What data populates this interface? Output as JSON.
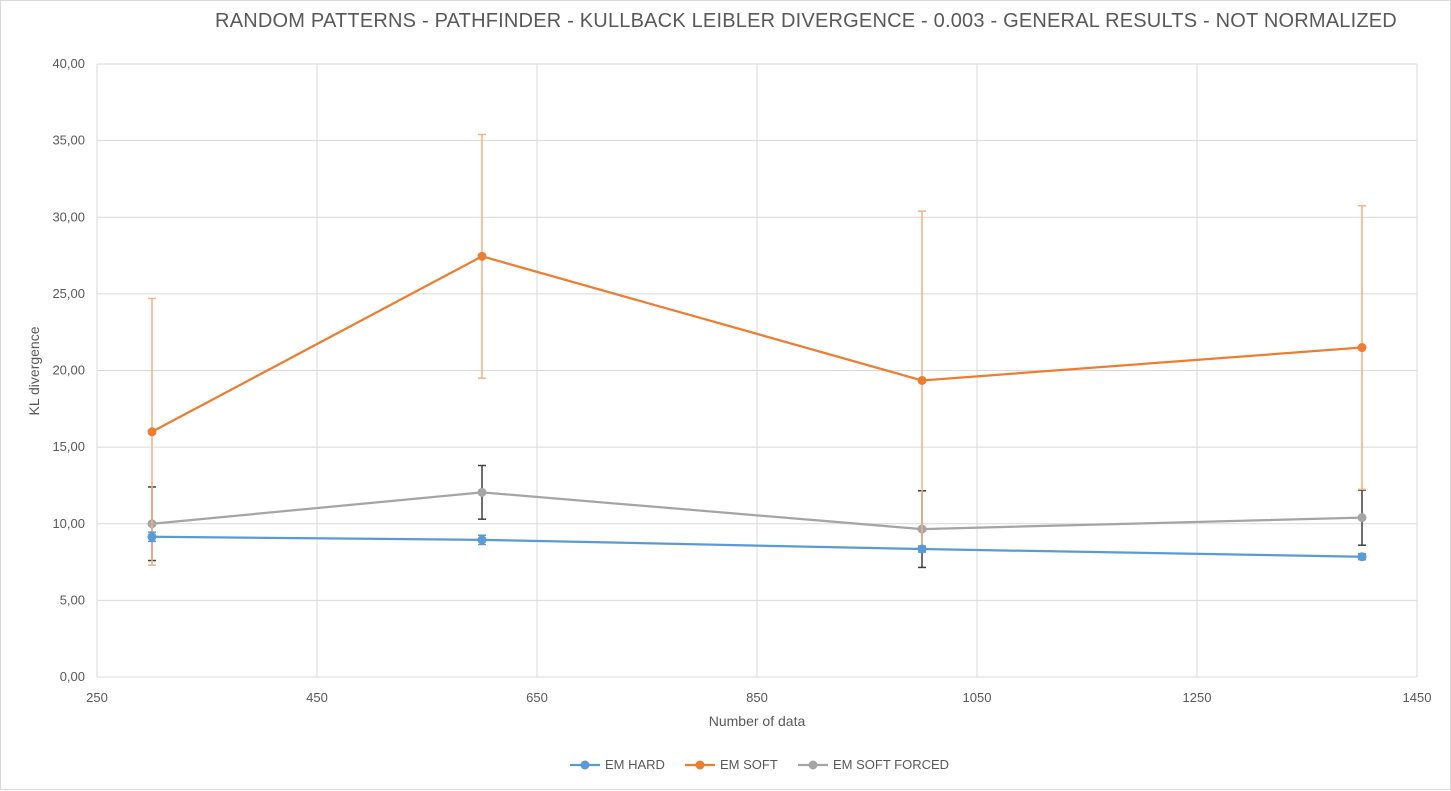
{
  "chart_data": {
    "type": "line",
    "title": "RANDOM PATTERNS - PATHFINDER - KULLBACK LEIBLER DIVERGENCE - 0.003 - GENERAL RESULTS - NOT NORMALIZED",
    "xlabel": "Number of data",
    "ylabel": "KL divergence",
    "xlim": [
      250,
      1450
    ],
    "ylim": [
      0,
      40
    ],
    "x_ticks": [
      250,
      450,
      650,
      850,
      1050,
      1250,
      1450
    ],
    "x_tick_labels": [
      "250",
      "450",
      "650",
      "850",
      "1050",
      "1250",
      "1450"
    ],
    "y_ticks": [
      0,
      5,
      10,
      15,
      20,
      25,
      30,
      35,
      40
    ],
    "y_tick_labels": [
      "0,00",
      "5,00",
      "10,00",
      "15,00",
      "20,00",
      "25,00",
      "30,00",
      "35,00",
      "40,00"
    ],
    "grid": true,
    "legend_position": "bottom",
    "x": [
      300,
      600,
      1000,
      1400
    ],
    "series": [
      {
        "name": "EM HARD",
        "color": "#5b9bd5",
        "values": [
          9.15,
          8.95,
          8.35,
          7.85
        ],
        "error": [
          0.3,
          0.3,
          0.2,
          0.2
        ],
        "error_color": "#5b9bd5"
      },
      {
        "name": "EM SOFT",
        "color": "#ed7d31",
        "values": [
          16.0,
          27.45,
          19.35,
          21.5
        ],
        "error": [
          8.7,
          7.95,
          11.05,
          9.25
        ],
        "error_color": "#f4b183"
      },
      {
        "name": "EM SOFT FORCED",
        "color": "#a5a5a5",
        "values": [
          10.0,
          12.05,
          9.65,
          10.4
        ],
        "error": [
          2.4,
          1.75,
          2.5,
          1.8
        ],
        "error_color": "#404040"
      }
    ]
  }
}
